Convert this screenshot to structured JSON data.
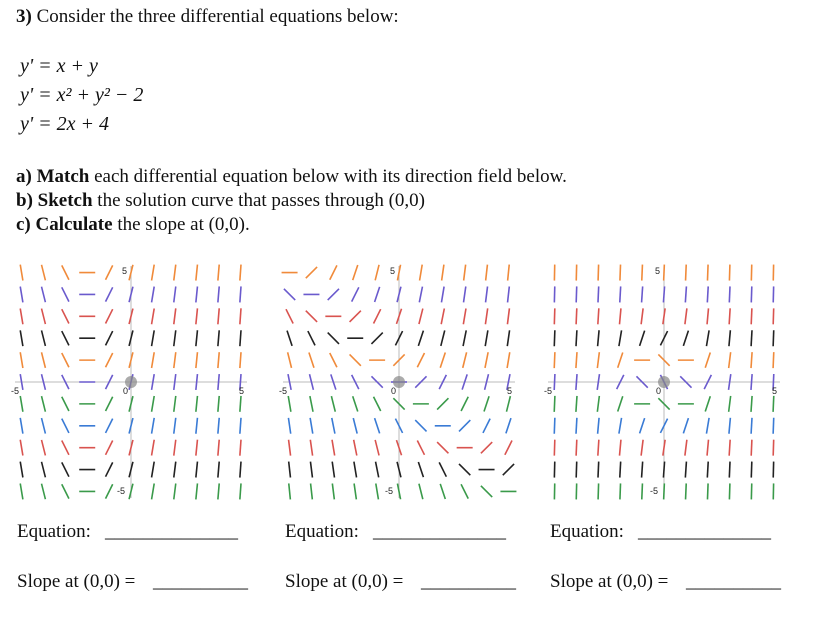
{
  "question": {
    "number": "3)",
    "text": "Consider the three differential equations below:"
  },
  "equations": [
    "y' = x + y",
    "y' = x² + y² − 2",
    "y' = 2x + 4"
  ],
  "instructions": [
    {
      "label": "a) Match",
      "text": "each differential equation below with its direction field below."
    },
    {
      "label": "b) Sketch",
      "text": "the solution curve that passes through (0,0)"
    },
    {
      "label": "c) Calculate",
      "text": "the slope at (0,0)."
    }
  ],
  "fields": [
    {
      "axis_labels": {
        "top": "5",
        "bottom": "-5",
        "left": "-5",
        "right": "5",
        "origin": "0"
      },
      "equation_label": "Equation:",
      "equation_blank": "______________",
      "slope_label": "Slope at (0,0) =",
      "slope_blank": "__________"
    },
    {
      "axis_labels": {
        "top": "5",
        "bottom": "-5",
        "left": "-5",
        "right": "5",
        "origin": "0"
      },
      "equation_label": "Equation:",
      "equation_blank": "______________",
      "slope_label": "Slope at (0,0) =",
      "slope_blank": "__________"
    },
    {
      "axis_labels": {
        "top": "5",
        "bottom": "-5",
        "left": "-5",
        "right": "5",
        "origin": "0"
      },
      "equation_label": "Equation:",
      "equation_blank": "______________",
      "slope_label": "Slope at (0,0) =",
      "slope_blank": "__________"
    }
  ]
}
